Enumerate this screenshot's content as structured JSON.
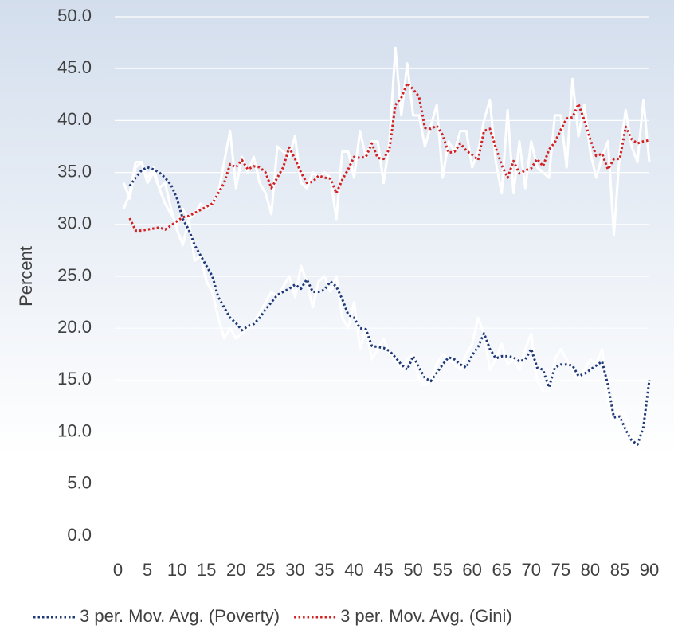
{
  "chart_data": {
    "type": "line",
    "y_label": "Percent",
    "x": [
      1,
      2,
      3,
      4,
      5,
      6,
      7,
      8,
      9,
      10,
      11,
      12,
      13,
      14,
      15,
      16,
      17,
      18,
      19,
      20,
      21,
      22,
      23,
      24,
      25,
      26,
      27,
      28,
      29,
      30,
      31,
      32,
      33,
      34,
      35,
      36,
      37,
      38,
      39,
      40,
      41,
      42,
      43,
      44,
      45,
      46,
      47,
      48,
      49,
      50,
      51,
      52,
      53,
      54,
      55,
      56,
      57,
      58,
      59,
      60,
      61,
      62,
      63,
      64,
      65,
      66,
      67,
      68,
      69,
      70,
      71,
      72,
      73,
      74,
      75,
      76,
      77,
      78,
      79,
      80,
      81,
      82,
      83,
      84,
      85,
      86,
      87,
      88,
      89,
      90
    ],
    "series": [
      {
        "color": "#ffffff",
        "dotted": false,
        "values": [
          31.5,
          33,
          36,
          36,
          34.5,
          35.5,
          33.5,
          34,
          31.5,
          29.5,
          28,
          30.5,
          26.5,
          27,
          24.5,
          23.5,
          21,
          19,
          20,
          19,
          19.5,
          20,
          20.5,
          21.5,
          22.5,
          23.5,
          23,
          24,
          25,
          23,
          26,
          24.5,
          22,
          24.5,
          25,
          23.5,
          25,
          21,
          20,
          22.5,
          18,
          20,
          17,
          18,
          19,
          17.5,
          17,
          16,
          17,
          17.5,
          15,
          14.5,
          15,
          16.5,
          17.5,
          17,
          16.5,
          16,
          17.5,
          18.5,
          21,
          19.5,
          16,
          17,
          18.5,
          16.5,
          17,
          16,
          18,
          19.5,
          15,
          14,
          14,
          17,
          18,
          17,
          16,
          15,
          16,
          17,
          16.5,
          18,
          13,
          11,
          12,
          11.5,
          9,
          8,
          11,
          15
        ]
      },
      {
        "color": "#ffffff",
        "dotted": false,
        "values": [
          34,
          32.5,
          35.5,
          36,
          34,
          35,
          33.5,
          32,
          31,
          30,
          31.5,
          30.5,
          31,
          32,
          31.5,
          32,
          33,
          36,
          39,
          33.5,
          36.5,
          35,
          36.5,
          34,
          33,
          31,
          37.5,
          37,
          36.5,
          38.5,
          34,
          33.5,
          35,
          34.5,
          35,
          34.5,
          30.5,
          37,
          37,
          34.5,
          39,
          36.5,
          38,
          38,
          34,
          38,
          47,
          40.5,
          45.5,
          40.5,
          40.5,
          37.5,
          39.5,
          41.5,
          34.5,
          38,
          37,
          39,
          39,
          35.5,
          37,
          40,
          42,
          36,
          33,
          41,
          33,
          38,
          33.5,
          38,
          35.5,
          35,
          34.5,
          40.5,
          40.5,
          35.5,
          44,
          38.5,
          41.5,
          37,
          34.5,
          36.5,
          38,
          29,
          37,
          41,
          37.5,
          36,
          42,
          36
        ]
      },
      {
        "name": "3 per. Mov. Avg. (Poverty)",
        "color": "#1f3878",
        "dotted": true,
        "values": [
          null,
          33.7,
          34.5,
          35.2,
          35.5,
          35.3,
          35,
          34.5,
          33.8,
          32.5,
          30.5,
          29.5,
          28,
          27,
          26,
          25,
          23,
          22,
          21,
          20.5,
          19.8,
          20.2,
          20.4,
          21,
          21.8,
          22.5,
          23.2,
          23.5,
          23.8,
          24.2,
          23.8,
          24.7,
          23.5,
          23.5,
          23.7,
          24.5,
          24,
          22.8,
          21.3,
          21,
          20,
          19.9,
          18.3,
          18.2,
          18.1,
          17.8,
          17.2,
          16.5,
          16,
          17.3,
          16.2,
          15.2,
          14.9,
          15.7,
          16.5,
          17.2,
          17,
          16.5,
          16.2,
          17.4,
          18.2,
          19.5,
          18,
          17.1,
          17.3,
          17.3,
          17.2,
          16.8,
          17,
          18,
          16.2,
          16,
          14.3,
          16.2,
          16.5,
          16.5,
          16.4,
          15.4,
          15.6,
          16,
          16.4,
          16.8,
          14.5,
          11.4,
          11.5,
          10.2,
          9.2,
          8.8,
          10.5,
          15
        ]
      },
      {
        "name": "3 per. Mov. Avg. (Gini)",
        "color": "#d42020",
        "dotted": true,
        "values": [
          null,
          30.6,
          29.4,
          29.4,
          29.5,
          29.6,
          29.7,
          29.5,
          29.9,
          30.3,
          30.7,
          30.8,
          31.1,
          31.4,
          31.7,
          32,
          33,
          34,
          35.8,
          35.5,
          36.2,
          35.3,
          35.6,
          35.5,
          35,
          33.5,
          34.5,
          35.5,
          37.4,
          36.3,
          35,
          34,
          34.1,
          34.7,
          34.5,
          34.4,
          33,
          34.3,
          35.3,
          36.5,
          36.4,
          36.5,
          37.8,
          36.4,
          36.3,
          37.3,
          41.5,
          42.2,
          43.6,
          43,
          42.3,
          39.3,
          39.2,
          39.5,
          38.6,
          36.9,
          37,
          37.8,
          37.1,
          36.7,
          36.2,
          39,
          39.2,
          37.4,
          35.7,
          34.5,
          36.1,
          34.9,
          35.2,
          35.4,
          36.3,
          35.6,
          37.2,
          37.9,
          39.1,
          40.2,
          40.3,
          41.6,
          40,
          38.2,
          36.6,
          36.8,
          35.3,
          36.3,
          36.3,
          39.4,
          38.2,
          37.8,
          38,
          38.1
        ]
      }
    ],
    "xlim": [
      0,
      90
    ],
    "xticks": [
      0,
      5,
      10,
      15,
      20,
      25,
      30,
      35,
      40,
      45,
      50,
      55,
      60,
      65,
      70,
      75,
      80,
      85,
      90
    ],
    "ylim": [
      0,
      50
    ],
    "yticks": [
      {
        "value": 0,
        "label": "0.0"
      },
      {
        "value": 5,
        "label": "5.0"
      },
      {
        "value": 10,
        "label": "10.0"
      },
      {
        "value": 15,
        "label": "15.0"
      },
      {
        "value": 20,
        "label": "20.0"
      },
      {
        "value": 25,
        "label": "25.0"
      },
      {
        "value": 30,
        "label": "30.0"
      },
      {
        "value": 35,
        "label": "35.0"
      },
      {
        "value": 40,
        "label": "40.0"
      },
      {
        "value": 45,
        "label": "45.0"
      },
      {
        "value": 50,
        "label": "50.0"
      }
    ],
    "grid": true,
    "legend": "bottom"
  }
}
